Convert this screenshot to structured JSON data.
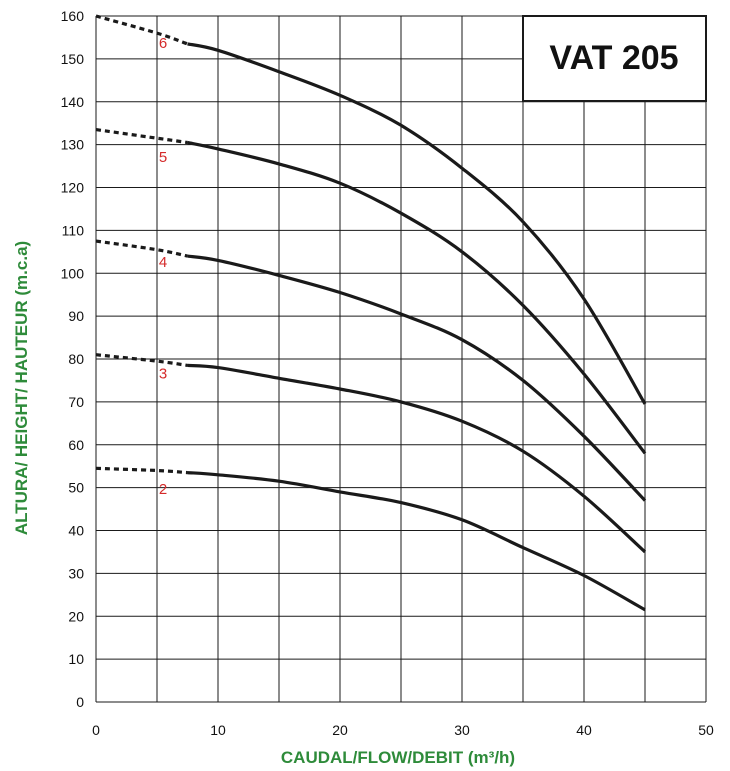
{
  "chart_data": {
    "type": "line",
    "title": "VAT 205",
    "xlabel": "CAUDAL/FLOW/DEBIT (m³/h)",
    "ylabel": "ALTURA/ HEIGHT/ HAUTEUR (m.c.a)",
    "xlim": [
      0,
      50
    ],
    "ylim": [
      0,
      160
    ],
    "x_ticks": [
      0,
      10,
      20,
      30,
      40,
      50
    ],
    "y_ticks": [
      0,
      10,
      20,
      30,
      40,
      50,
      60,
      70,
      80,
      90,
      100,
      110,
      120,
      130,
      140,
      150,
      160
    ],
    "x_grid_step": 5,
    "y_grid_step": 10,
    "grid": true,
    "series": [
      {
        "name": "2",
        "dashed_until_x": 7.5,
        "points": [
          [
            0,
            54.5
          ],
          [
            5,
            54
          ],
          [
            7.5,
            53.5
          ],
          [
            10,
            53
          ],
          [
            15,
            51.5
          ],
          [
            20,
            49
          ],
          [
            25,
            46.5
          ],
          [
            30,
            42.5
          ],
          [
            35,
            36
          ],
          [
            40,
            29.5
          ],
          [
            45,
            21.5
          ]
        ]
      },
      {
        "name": "3",
        "dashed_until_x": 7.5,
        "points": [
          [
            0,
            81
          ],
          [
            5,
            79.5
          ],
          [
            7.5,
            78.5
          ],
          [
            10,
            78
          ],
          [
            15,
            75.5
          ],
          [
            20,
            73
          ],
          [
            25,
            70
          ],
          [
            30,
            65.5
          ],
          [
            35,
            58.5
          ],
          [
            40,
            48
          ],
          [
            45,
            35
          ]
        ]
      },
      {
        "name": "4",
        "dashed_until_x": 7.5,
        "points": [
          [
            0,
            107.5
          ],
          [
            5,
            105.5
          ],
          [
            7.5,
            104
          ],
          [
            10,
            103
          ],
          [
            15,
            99.5
          ],
          [
            20,
            95.5
          ],
          [
            25,
            90.5
          ],
          [
            30,
            84.5
          ],
          [
            35,
            75
          ],
          [
            40,
            62
          ],
          [
            45,
            47
          ]
        ]
      },
      {
        "name": "5",
        "dashed_until_x": 7.5,
        "points": [
          [
            0,
            133.5
          ],
          [
            5,
            131.5
          ],
          [
            7.5,
            130.5
          ],
          [
            10,
            129
          ],
          [
            15,
            125.5
          ],
          [
            20,
            121
          ],
          [
            25,
            114
          ],
          [
            30,
            105
          ],
          [
            35,
            92.5
          ],
          [
            40,
            76.5
          ],
          [
            45,
            58
          ]
        ]
      },
      {
        "name": "6",
        "dashed_until_x": 7.5,
        "points": [
          [
            0,
            160
          ],
          [
            5,
            156
          ],
          [
            7.5,
            153.5
          ],
          [
            10,
            152
          ],
          [
            15,
            147
          ],
          [
            20,
            141.5
          ],
          [
            25,
            134.5
          ],
          [
            30,
            124.5
          ],
          [
            35,
            112
          ],
          [
            40,
            94
          ],
          [
            45,
            69.5
          ]
        ]
      }
    ],
    "curve_labels": [
      {
        "text": "2",
        "x": 5.5,
        "y": 48.5
      },
      {
        "text": "3",
        "x": 5.5,
        "y": 75.5
      },
      {
        "text": "4",
        "x": 5.5,
        "y": 101.5
      },
      {
        "text": "5",
        "x": 5.5,
        "y": 126
      },
      {
        "text": "6",
        "x": 5.5,
        "y": 152.5
      }
    ]
  },
  "colors": {
    "curve": "#1a1a1a",
    "grid": "#1a1a1a",
    "axis_title": "#2e8b3a",
    "curve_label": "#d42a2a"
  }
}
